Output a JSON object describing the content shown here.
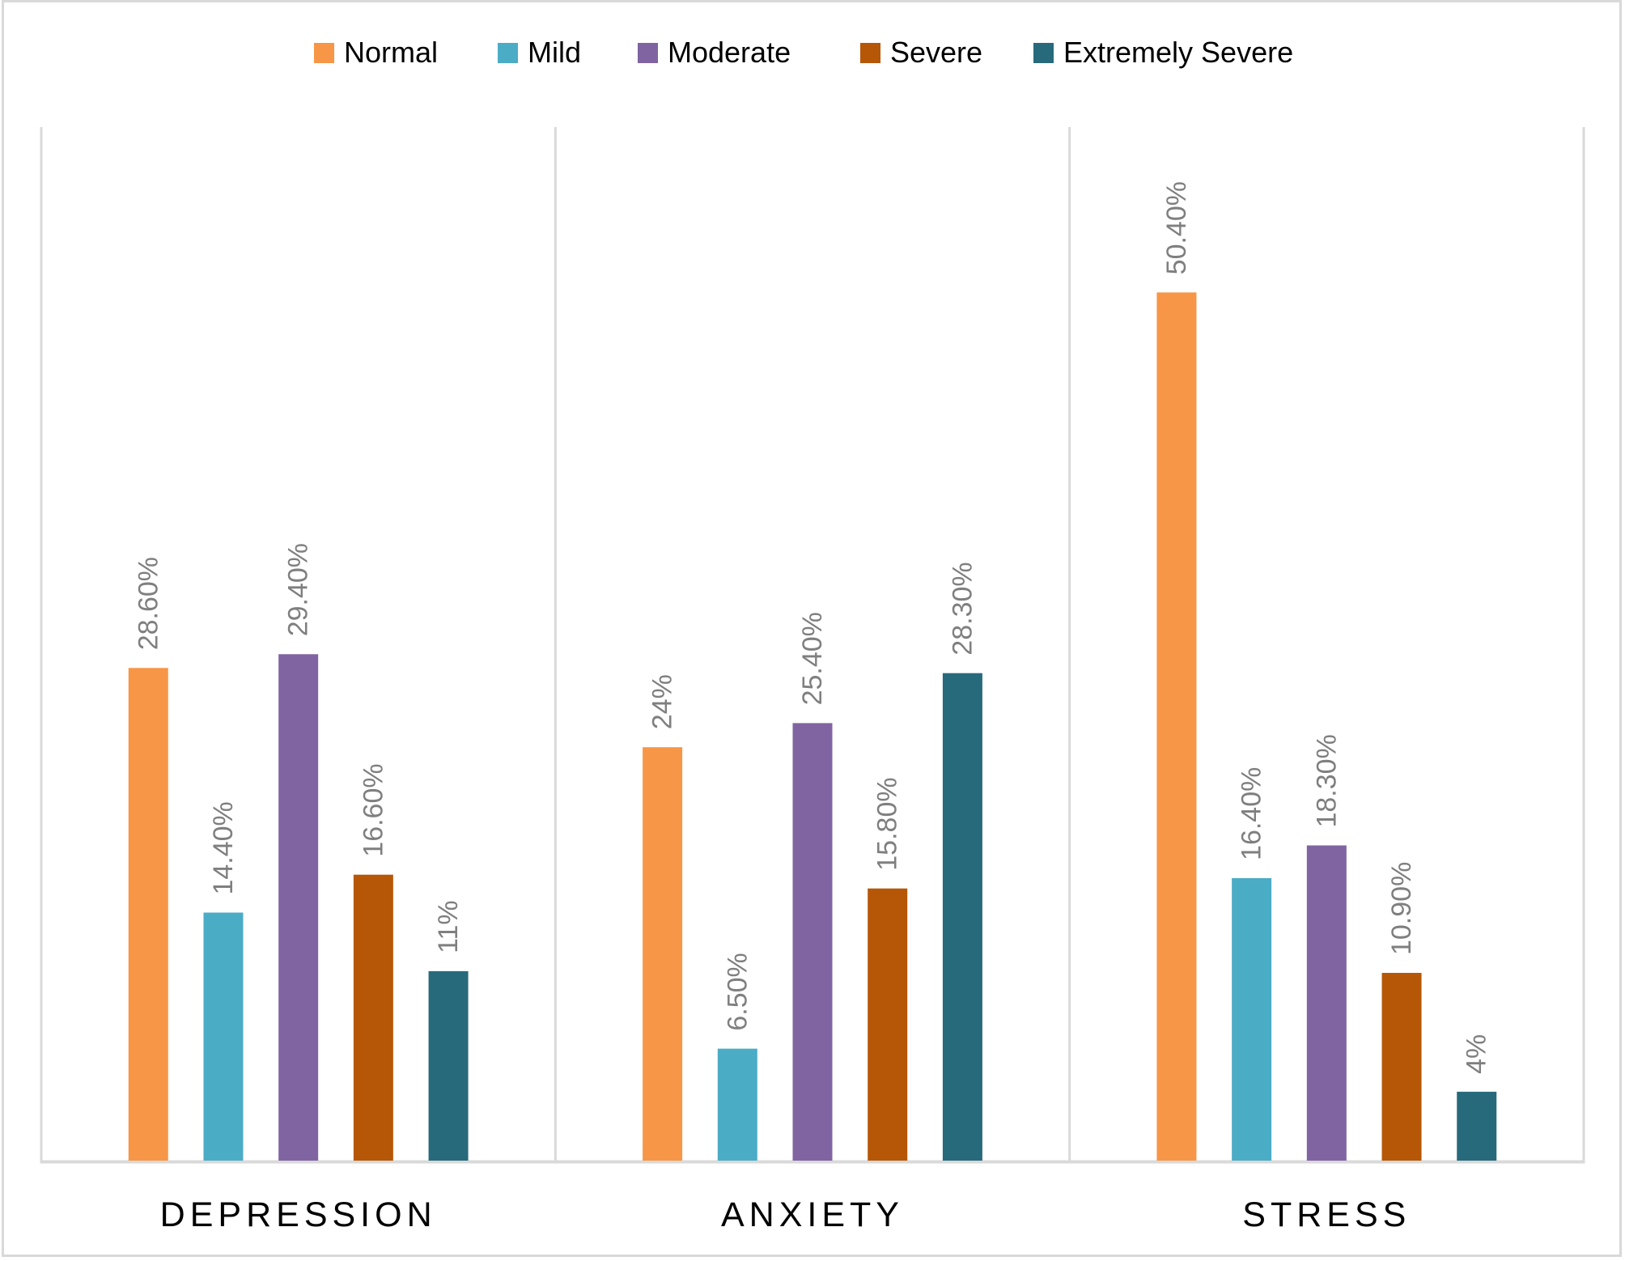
{
  "chart_data": {
    "type": "bar",
    "title": "",
    "xlabel": "",
    "ylabel": "",
    "ylim": [
      0,
      60
    ],
    "grid": false,
    "legend_position": "top",
    "categories": [
      "DEPRESSION",
      "ANXIETY",
      "STRESS"
    ],
    "series": [
      {
        "name": "Normal",
        "color": "#F79646",
        "values": [
          28.6,
          24.0,
          50.4
        ],
        "labels": [
          "28.60%",
          "24%",
          "50.40%"
        ]
      },
      {
        "name": "Mild",
        "color": "#4BACC6",
        "values": [
          14.4,
          6.5,
          16.4
        ],
        "labels": [
          "14.40%",
          "6.50%",
          "16.40%"
        ]
      },
      {
        "name": "Moderate",
        "color": "#8064A2",
        "values": [
          29.4,
          25.4,
          18.3
        ],
        "labels": [
          "29.40%",
          "25.40%",
          "18.30%"
        ]
      },
      {
        "name": "Severe",
        "color": "#B65708",
        "values": [
          16.6,
          15.8,
          10.9
        ],
        "labels": [
          "16.60%",
          "15.80%",
          "10.90%"
        ]
      },
      {
        "name": "Extremely Severe",
        "color": "#276A7C",
        "values": [
          11.0,
          28.3,
          4.0
        ],
        "labels": [
          "11%",
          "28.30%",
          "4%"
        ]
      }
    ]
  },
  "colors": {
    "axis": "#d9d9d9",
    "divider": "#d9d9d9",
    "data_label": "#7f7f7f",
    "category_label": "#000000"
  }
}
